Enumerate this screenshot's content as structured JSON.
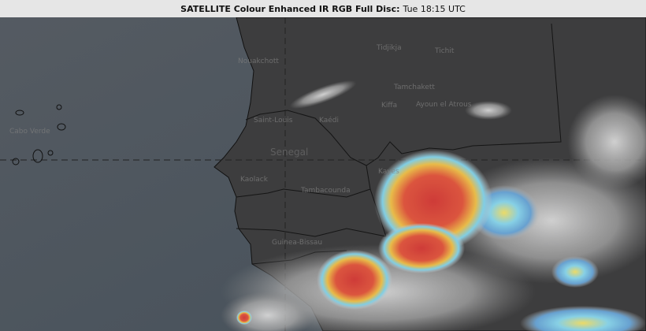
{
  "header": {
    "product": "SATELLITE Colour Enhanced IR RGB Full Disc:",
    "time": "Tue 18:15 UTC"
  },
  "map": {
    "labels": {
      "nouakchott": "Nouakchott",
      "tidjikja": "Tidjikja",
      "tichit": "Tichit",
      "tamchakett": "Tamchakett",
      "kiffa": "Kiffa",
      "ayoun": "Ayoun el Atrous",
      "kaedi": "Kaédi",
      "senegal": "Senegal",
      "kaolack": "Kaolack",
      "tambacounda": "Tambacounda",
      "kayes": "Kayes",
      "cabo_verde": "Cabo Verde",
      "guinea_bissau": "Guinea-Bissau",
      "saint_louis": "Saint-Louis"
    },
    "colors": {
      "ocean": "#4b535c",
      "land": "#3e3e3e",
      "cold_cloud_red": "#d9443a",
      "cloud_yellow": "#f2c94c",
      "cloud_cyan": "#7fd3f0"
    }
  }
}
